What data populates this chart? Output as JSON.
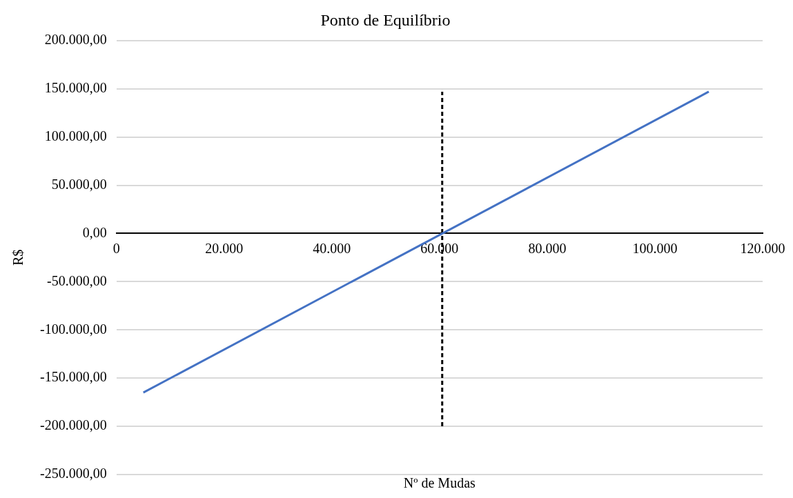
{
  "chart_data": {
    "type": "line",
    "title": "Ponto de Equilíbrio",
    "xlabel": "Nº de Mudas",
    "ylabel": "R$",
    "xlim": [
      0,
      120000
    ],
    "xticks": [
      0,
      {
        "value": 20000,
        "label": "20.000"
      },
      {
        "value": 40000,
        "label": "40.000"
      },
      {
        "value": 60000,
        "label": "60.000"
      },
      {
        "value": 80000,
        "label": "80.000"
      },
      {
        "value": 100000,
        "label": "100.000"
      },
      {
        "value": 120000,
        "label": "120.000"
      }
    ],
    "ylim": [
      -250000,
      200000
    ],
    "yticks": [
      {
        "value": -250000,
        "label": "-250.000,00"
      },
      {
        "value": -200000,
        "label": "-200.000,00"
      },
      {
        "value": -150000,
        "label": "-150.000,00"
      },
      {
        "value": -100000,
        "label": "-100.000,00"
      },
      {
        "value": -50000,
        "label": "-50.000,00"
      },
      {
        "value": 0,
        "label": "0,00"
      },
      {
        "value": 50000,
        "label": "50.000,00"
      },
      {
        "value": 100000,
        "label": "100.000,00"
      },
      {
        "value": 150000,
        "label": "150.000,00"
      },
      {
        "value": 200000,
        "label": "200.000,00"
      }
    ],
    "grid": "y",
    "legend": false,
    "marker": "none",
    "series": [
      {
        "type": "line",
        "color": "#4472c4",
        "line_style": "solid",
        "x": [
          5000,
          110000
        ],
        "values": [
          -165000,
          147000
        ]
      },
      {
        "type": "line",
        "color": "#000000",
        "line_style": "dashed",
        "x": [
          60500,
          60500
        ],
        "values": [
          -200000,
          147000
        ]
      }
    ]
  }
}
